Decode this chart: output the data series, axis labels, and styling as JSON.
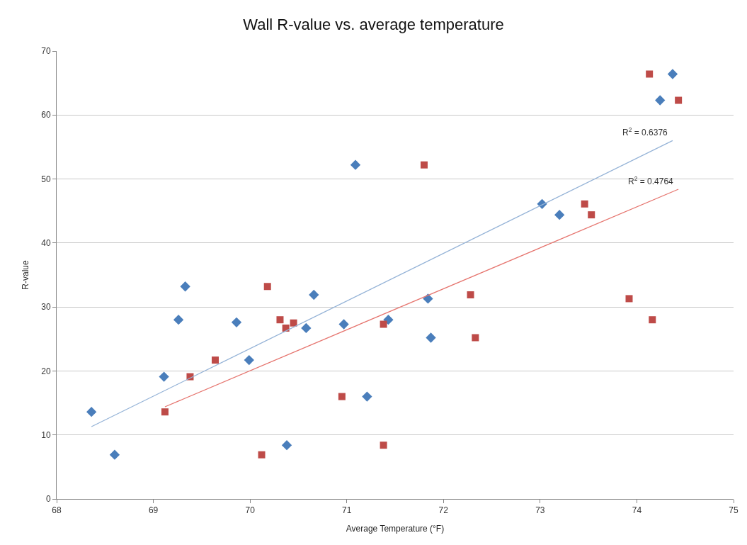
{
  "chart_data": {
    "type": "scatter",
    "title": "Wall R-value vs. average temperature",
    "xlabel": "Average Temperature (°F)",
    "ylabel": "R-value",
    "xlim": [
      68,
      75
    ],
    "xticks": [
      68,
      69,
      70,
      71,
      72,
      73,
      74,
      75
    ],
    "ylim": [
      0,
      70
    ],
    "yticks": [
      0,
      10,
      20,
      30,
      40,
      50,
      60,
      70
    ],
    "grid": "y",
    "series": [
      {
        "color": "#4a7ebb",
        "marker": "diamond",
        "x": [
          68.36,
          68.6,
          69.11,
          69.26,
          69.33,
          69.86,
          69.99,
          70.38,
          70.58,
          70.66,
          70.97,
          71.09,
          71.21,
          71.43,
          71.84,
          71.87,
          73.02,
          73.2,
          74.24,
          74.37
        ],
        "values": [
          13.6,
          6.9,
          19.1,
          28.0,
          33.2,
          27.6,
          21.7,
          8.4,
          26.7,
          31.9,
          27.3,
          52.2,
          16.0,
          28.0,
          31.3,
          25.2,
          46.1,
          44.4,
          62.3,
          66.4
        ]
      },
      {
        "color": "#be4b48",
        "marker": "square",
        "x": [
          69.12,
          69.38,
          69.64,
          70.12,
          70.18,
          70.31,
          70.37,
          70.45,
          70.95,
          71.38,
          71.38,
          71.8,
          72.28,
          72.33,
          73.46,
          73.53,
          73.92,
          74.16,
          74.13,
          74.43
        ],
        "values": [
          13.6,
          19.1,
          21.7,
          6.9,
          33.2,
          28.0,
          26.7,
          27.5,
          16.0,
          27.3,
          8.4,
          52.2,
          31.9,
          25.2,
          46.1,
          44.4,
          31.3,
          28.0,
          66.4,
          62.3
        ]
      },
      {
        "type": "line",
        "color": "#95b3d7",
        "marker": "none",
        "x": [
          68.36,
          74.37
        ],
        "values": [
          11.3,
          56.0
        ]
      },
      {
        "type": "line",
        "color": "#e6756f",
        "marker": "none",
        "x": [
          69.12,
          74.43
        ],
        "values": [
          14.4,
          48.4
        ]
      }
    ],
    "annotations": [
      {
        "text": "R$^{2}$ = 0.6376",
        "x": 74.37,
        "y": 56.0
      },
      {
        "text": "R$^{2}$ = 0.4764",
        "x": 74.43,
        "y": 48.4
      }
    ]
  }
}
